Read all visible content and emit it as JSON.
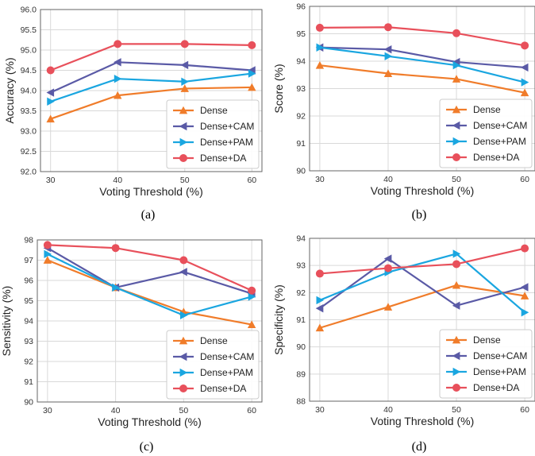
{
  "colors": {
    "Dense": "#f07c2a",
    "Dense+CAM": "#5a5aa6",
    "Dense+PAM": "#1aa6e0",
    "Dense+DA": "#e8505b",
    "grid": "#d9d9d9",
    "frame": "#666666"
  },
  "chart_data": [
    {
      "type": "line",
      "panel_label": "(a)",
      "xlabel": "Voting Threshold (%)",
      "ylabel": "Accuracy (%)",
      "x": [
        30,
        40,
        50,
        60
      ],
      "xticks": [
        "30",
        "40",
        "50",
        "60"
      ],
      "xlim": [
        28.5,
        61.5
      ],
      "ylim": [
        92.0,
        96.0
      ],
      "yticks": [
        "92.0",
        "92.5",
        "93.0",
        "93.5",
        "94.0",
        "94.5",
        "95.0",
        "95.5",
        "96.0"
      ],
      "grid": true,
      "legend_position": "lower-right",
      "series": [
        {
          "name": "Dense",
          "marker": "triangle-up",
          "values": [
            93.3,
            93.88,
            94.05,
            94.08
          ]
        },
        {
          "name": "Dense+CAM",
          "marker": "triangle-left",
          "values": [
            93.95,
            94.7,
            94.63,
            94.5
          ]
        },
        {
          "name": "Dense+PAM",
          "marker": "triangle-right",
          "values": [
            93.73,
            94.29,
            94.22,
            94.42
          ]
        },
        {
          "name": "Dense+DA",
          "marker": "circle",
          "values": [
            94.5,
            95.15,
            95.15,
            95.12
          ]
        }
      ]
    },
    {
      "type": "line",
      "panel_label": "(b)",
      "xlabel": "Voting Threshold (%)",
      "ylabel": "Score (%)",
      "x": [
        30,
        40,
        50,
        60
      ],
      "xticks": [
        "30",
        "40",
        "50",
        "60"
      ],
      "xlim": [
        28.5,
        61.5
      ],
      "ylim": [
        90,
        96
      ],
      "yticks": [
        "90",
        "91",
        "92",
        "93",
        "94",
        "95",
        "96"
      ],
      "grid": true,
      "legend_position": "lower-right",
      "series": [
        {
          "name": "Dense",
          "marker": "triangle-up",
          "values": [
            93.85,
            93.55,
            93.35,
            92.85
          ]
        },
        {
          "name": "Dense+CAM",
          "marker": "triangle-left",
          "values": [
            94.5,
            94.43,
            93.97,
            93.77
          ]
        },
        {
          "name": "Dense+PAM",
          "marker": "triangle-right",
          "values": [
            94.5,
            94.18,
            93.85,
            93.23
          ]
        },
        {
          "name": "Dense+DA",
          "marker": "circle",
          "values": [
            95.22,
            95.24,
            95.02,
            94.57
          ]
        }
      ]
    },
    {
      "type": "line",
      "panel_label": "(c)",
      "xlabel": "Voting Threshold (%)",
      "ylabel": "Sensitivity (%)",
      "x": [
        30,
        40,
        50,
        60
      ],
      "xticks": [
        "30",
        "40",
        "50",
        "60"
      ],
      "xlim": [
        28.5,
        61.5
      ],
      "ylim": [
        90,
        98
      ],
      "yticks": [
        "90",
        "91",
        "92",
        "93",
        "94",
        "95",
        "96",
        "97",
        "98"
      ],
      "grid": true,
      "legend_position": "lower-right",
      "series": [
        {
          "name": "Dense",
          "marker": "triangle-up",
          "values": [
            97.0,
            95.65,
            94.45,
            93.82
          ]
        },
        {
          "name": "Dense+CAM",
          "marker": "triangle-left",
          "values": [
            97.6,
            95.65,
            96.42,
            95.35
          ]
        },
        {
          "name": "Dense+PAM",
          "marker": "triangle-right",
          "values": [
            97.3,
            95.65,
            94.28,
            95.2
          ]
        },
        {
          "name": "Dense+DA",
          "marker": "circle",
          "values": [
            97.75,
            97.6,
            97.0,
            95.5
          ]
        }
      ]
    },
    {
      "type": "line",
      "panel_label": "(d)",
      "xlabel": "Voting Threshold (%)",
      "ylabel": "Specificity (%)",
      "x": [
        30,
        40,
        50,
        60
      ],
      "xticks": [
        "30",
        "40",
        "50",
        "60"
      ],
      "xlim": [
        28.5,
        61.5
      ],
      "ylim": [
        88,
        94
      ],
      "yticks": [
        "88",
        "89",
        "90",
        "91",
        "92",
        "93",
        "94"
      ],
      "grid": true,
      "legend_position": "lower-right",
      "series": [
        {
          "name": "Dense",
          "marker": "triangle-up",
          "values": [
            90.7,
            91.47,
            92.27,
            91.88
          ]
        },
        {
          "name": "Dense+CAM",
          "marker": "triangle-left",
          "values": [
            91.42,
            93.25,
            91.52,
            92.2
          ]
        },
        {
          "name": "Dense+PAM",
          "marker": "triangle-right",
          "values": [
            91.72,
            92.75,
            93.43,
            91.27
          ]
        },
        {
          "name": "Dense+DA",
          "marker": "circle",
          "values": [
            92.7,
            92.9,
            93.05,
            93.63
          ]
        }
      ]
    }
  ]
}
